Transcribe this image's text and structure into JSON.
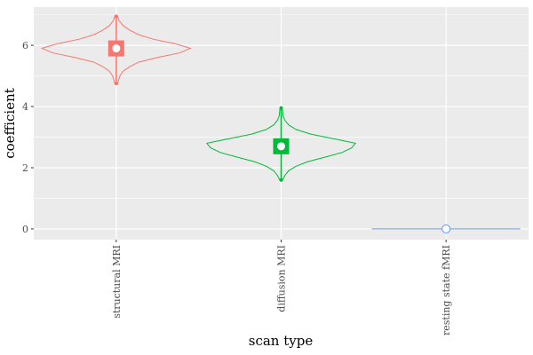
{
  "chart_data": {
    "type": "violin",
    "xlabel": "scan type",
    "ylabel": "coefficient",
    "categories": [
      "structural MRI",
      "diffusion MRI",
      "resting state fMRI"
    ],
    "y_ticks": [
      0,
      2,
      4,
      6
    ],
    "ylim": [
      -0.35,
      7.25
    ],
    "grid": true,
    "legend": "none",
    "colors": [
      "#F8766D",
      "#00BA38",
      "#619CFF"
    ],
    "panel_background": "#EBEBEB",
    "groups": [
      {
        "category": "structural MRI",
        "min": 4.75,
        "max": 6.95,
        "mean": 5.9,
        "median": 5.9,
        "profile": [
          [
            4.75,
            0.02
          ],
          [
            4.85,
            0.03
          ],
          [
            5.0,
            0.05
          ],
          [
            5.15,
            0.09
          ],
          [
            5.3,
            0.18
          ],
          [
            5.45,
            0.3
          ],
          [
            5.6,
            0.55
          ],
          [
            5.75,
            0.85
          ],
          [
            5.9,
            1.0
          ],
          [
            6.05,
            0.8
          ],
          [
            6.2,
            0.5
          ],
          [
            6.35,
            0.3
          ],
          [
            6.5,
            0.18
          ],
          [
            6.65,
            0.09
          ],
          [
            6.8,
            0.04
          ],
          [
            6.95,
            0.02
          ]
        ]
      },
      {
        "category": "diffusion MRI",
        "min": 1.6,
        "max": 3.95,
        "mean": 2.7,
        "median": 2.7,
        "profile": [
          [
            1.6,
            0.02
          ],
          [
            1.75,
            0.05
          ],
          [
            1.9,
            0.1
          ],
          [
            2.05,
            0.2
          ],
          [
            2.2,
            0.36
          ],
          [
            2.35,
            0.6
          ],
          [
            2.5,
            0.82
          ],
          [
            2.65,
            0.95
          ],
          [
            2.8,
            1.0
          ],
          [
            2.95,
            0.7
          ],
          [
            3.1,
            0.4
          ],
          [
            3.25,
            0.2
          ],
          [
            3.4,
            0.1
          ],
          [
            3.55,
            0.05
          ],
          [
            3.7,
            0.025
          ],
          [
            3.85,
            0.02
          ],
          [
            3.95,
            0.015
          ]
        ]
      },
      {
        "category": "resting state fMRI",
        "min": 0,
        "max": 0,
        "mean": 0,
        "median": 0,
        "profile": [
          [
            0,
            1.0
          ]
        ]
      }
    ]
  }
}
